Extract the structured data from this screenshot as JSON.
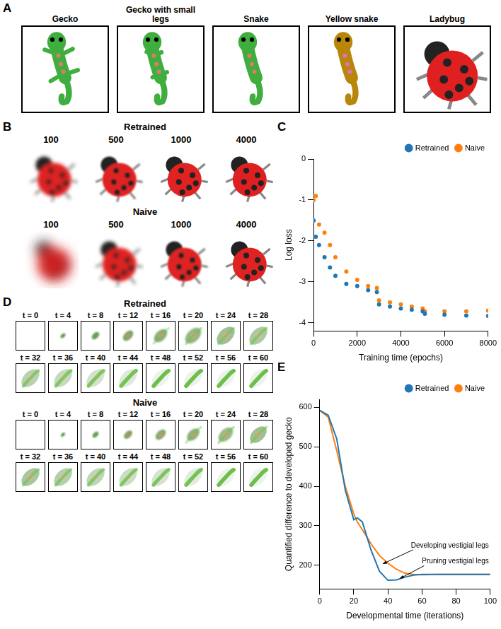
{
  "panel_A": {
    "letter": "A",
    "labels": [
      "Gecko",
      "Gecko with small legs",
      "Snake",
      "Yellow snake",
      "Ladybug"
    ]
  },
  "panel_B": {
    "letter": "B",
    "rows": [
      {
        "title": "Retrained",
        "steps": [
          100,
          500,
          1000,
          4000
        ]
      },
      {
        "title": "Naive",
        "steps": [
          100,
          500,
          1000,
          4000
        ]
      }
    ]
  },
  "panel_D": {
    "letter": "D",
    "rows": [
      {
        "title": "Retrained",
        "frames": [
          "t = 0",
          "t = 4",
          "t = 8",
          "t = 12",
          "t = 16",
          "t = 20",
          "t = 24",
          "t = 28",
          "t = 32",
          "t = 36",
          "t = 40",
          "t = 44",
          "t = 48",
          "t = 52",
          "t = 56",
          "t = 60"
        ]
      },
      {
        "title": "Naive",
        "frames": [
          "t = 0",
          "t = 4",
          "t = 8",
          "t = 12",
          "t = 16",
          "t = 20",
          "t = 24",
          "t = 28",
          "t = 32",
          "t = 36",
          "t = 40",
          "t = 44",
          "t = 48",
          "t = 52",
          "t = 56",
          "t = 60"
        ]
      }
    ]
  },
  "chart_data": [
    {
      "panel": "C",
      "type": "scatter",
      "x_label": "Training time (epochs)",
      "y_label": "Log loss",
      "x": [
        0,
        100,
        250,
        500,
        750,
        1000,
        1500,
        2000,
        2500,
        2900,
        3000,
        3500,
        4000,
        4500,
        5000,
        5100,
        6000,
        7000,
        8000
      ],
      "series": [
        {
          "name": "Retrained",
          "color": "#1f77b4",
          "values": [
            -1.5,
            -1.9,
            -2.1,
            -2.4,
            -2.65,
            -2.85,
            -3.05,
            -3.1,
            -3.2,
            -3.25,
            -3.55,
            -3.6,
            -3.65,
            -3.68,
            -3.72,
            -3.78,
            -3.8,
            -3.82,
            -3.83
          ]
        },
        {
          "name": "Naive",
          "color": "#ff7f0e",
          "values": [
            -1.0,
            -0.9,
            -1.6,
            -1.8,
            -2.1,
            -2.4,
            -2.75,
            -2.95,
            -3.1,
            -3.15,
            -3.45,
            -3.5,
            -3.55,
            -3.6,
            -3.65,
            -3.72,
            -3.72,
            -3.72,
            -3.7
          ]
        }
      ],
      "xlim": [
        0,
        8000
      ],
      "ylim": [
        -4.2,
        0
      ],
      "xticks": [
        0,
        2000,
        4000,
        6000,
        8000
      ],
      "yticks": [
        -4,
        -3,
        -2,
        -1,
        0
      ],
      "grid": false,
      "legend": "top right",
      "marker": "circle"
    },
    {
      "panel": "E",
      "type": "line",
      "x_label": "Developmental time (iterations)",
      "y_label": "Quantified difference to developed gecko",
      "x": [
        0,
        5,
        10,
        15,
        20,
        22,
        25,
        30,
        35,
        40,
        45,
        50,
        55,
        60,
        70,
        80,
        90,
        100
      ],
      "series": [
        {
          "name": "Retrained",
          "color": "#1f77b4",
          "values": [
            592,
            580,
            520,
            390,
            315,
            320,
            310,
            240,
            185,
            162,
            163,
            170,
            175,
            177,
            177,
            177,
            177,
            177
          ]
        },
        {
          "name": "Naive",
          "color": "#ff7f0e",
          "values": [
            592,
            575,
            490,
            400,
            330,
            310,
            290,
            255,
            225,
            205,
            190,
            180,
            177,
            176,
            177,
            177,
            177,
            177
          ]
        }
      ],
      "xlim": [
        0,
        100
      ],
      "ylim": [
        140,
        620
      ],
      "xticks": [
        0,
        20,
        40,
        60,
        80,
        100
      ],
      "yticks": [
        200,
        300,
        400,
        500,
        600
      ],
      "grid": false,
      "legend": "top right",
      "annotations": [
        {
          "text": "Developing vestigial legs",
          "x": 37,
          "y": 200
        },
        {
          "text": "Pruning vestigial legs",
          "x": 47,
          "y": 163
        }
      ]
    }
  ]
}
